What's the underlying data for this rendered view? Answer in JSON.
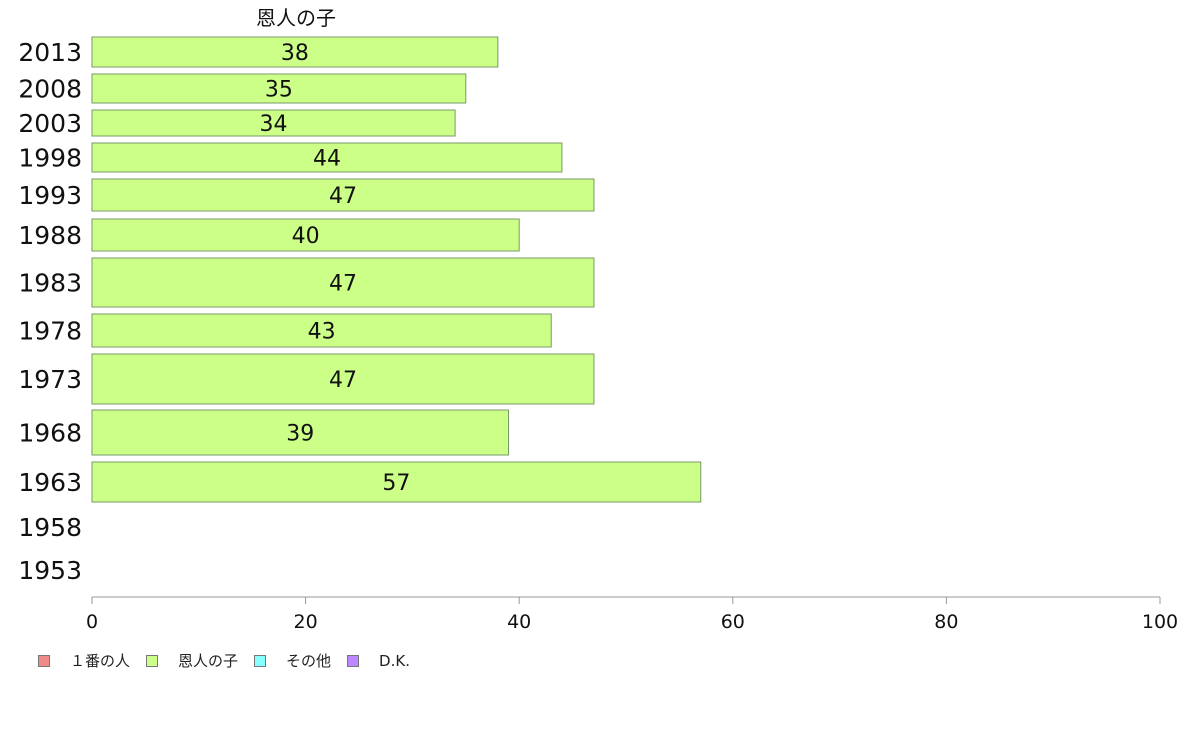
{
  "chart_data": {
    "type": "bar",
    "orientation": "horizontal",
    "title": "恩人の子",
    "categories": [
      "2013",
      "2008",
      "2003",
      "1998",
      "1993",
      "1988",
      "1983",
      "1978",
      "1973",
      "1968",
      "1963",
      "1958",
      "1953"
    ],
    "series": [
      {
        "name": "１番の人",
        "color": "#f08a8a",
        "values": [
          null,
          null,
          null,
          null,
          null,
          null,
          null,
          null,
          null,
          null,
          null,
          null,
          null
        ]
      },
      {
        "name": "恩人の子",
        "color": "#ccff88",
        "values": [
          38,
          35,
          34,
          44,
          47,
          40,
          47,
          43,
          47,
          39,
          57,
          null,
          null
        ]
      },
      {
        "name": "その他",
        "color": "#88ffff",
        "values": [
          null,
          null,
          null,
          null,
          null,
          null,
          null,
          null,
          null,
          null,
          null,
          null,
          null
        ]
      },
      {
        "name": "D.K.",
        "color": "#bb88ff",
        "values": [
          null,
          null,
          null,
          null,
          null,
          null,
          null,
          null,
          null,
          null,
          null,
          null,
          null
        ]
      }
    ],
    "xlim": [
      0,
      100
    ],
    "xticks": [
      "0",
      "20",
      "40",
      "60",
      "80",
      "100"
    ],
    "xlabel": "",
    "ylabel": "",
    "grid": false,
    "legend_position": "bottom-left"
  }
}
